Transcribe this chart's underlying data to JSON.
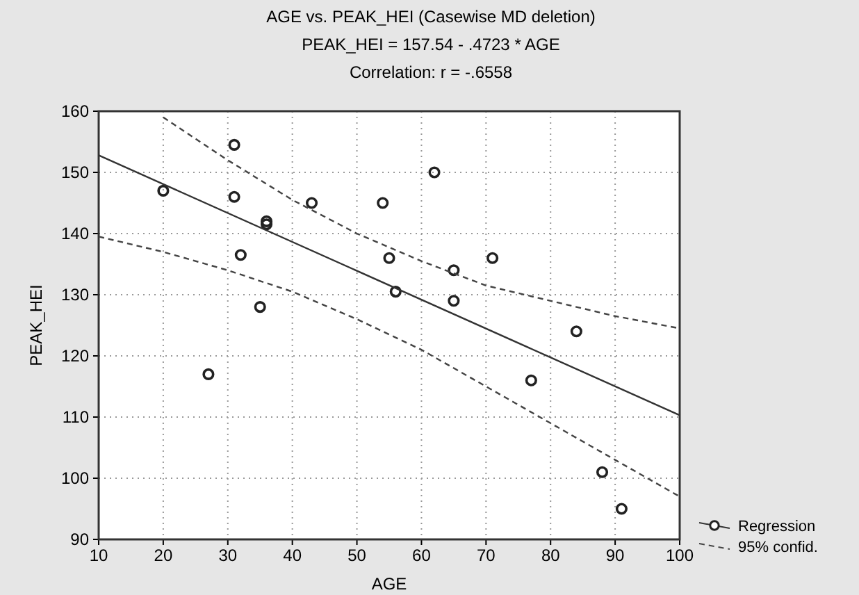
{
  "chart_data": {
    "type": "scatter",
    "title": "AGE vs. PEAK_HEI (Casewise MD deletion)",
    "subtitle": "PEAK_HEI = 157.54 - .4723 * AGE",
    "annotations": [
      "Correlation: r = -.6558"
    ],
    "xlabel": "AGE",
    "ylabel": "PEAK_HEI",
    "xlim": [
      10,
      100
    ],
    "xticks": [
      10,
      20,
      30,
      40,
      50,
      60,
      70,
      80,
      90,
      100
    ],
    "ylim": [
      90,
      160
    ],
    "yticks": [
      90,
      100,
      110,
      120,
      130,
      140,
      150,
      160
    ],
    "grid": true,
    "legend": "bottom right",
    "marker": "circle",
    "series": [
      {
        "color": "#222222",
        "x": [
          20,
          27,
          31,
          31,
          32,
          35,
          36,
          36,
          43,
          54,
          55,
          56,
          62,
          65,
          65,
          71,
          77,
          84,
          88,
          91
        ],
        "values": [
          147,
          117,
          154.5,
          146,
          136.5,
          128,
          142,
          141.5,
          145,
          145,
          136,
          130.5,
          150,
          134,
          129,
          136,
          116,
          124,
          101,
          95
        ]
      },
      {
        "type": "line",
        "name": "Regression",
        "color": "#333333",
        "line_style": "solid",
        "marker": "none",
        "x": [
          10,
          100
        ],
        "values": [
          152.8,
          110.3
        ]
      },
      {
        "type": "line",
        "name": "95% confid.",
        "color": "#444444",
        "line_style": "dashed",
        "marker": "none",
        "x": [
          20,
          30,
          40,
          50,
          60,
          70,
          80,
          90,
          100
        ],
        "values": [
          159,
          152,
          145.5,
          140,
          135.5,
          131.5,
          129,
          126.5,
          124.5
        ]
      },
      {
        "type": "line",
        "color": "#444444",
        "line_style": "dashed",
        "marker": "none",
        "x": [
          10,
          20,
          30,
          40,
          50,
          60,
          70,
          80,
          90,
          100
        ],
        "values": [
          139.5,
          137,
          134,
          130.5,
          126,
          121,
          115,
          109,
          103,
          97
        ]
      }
    ]
  }
}
